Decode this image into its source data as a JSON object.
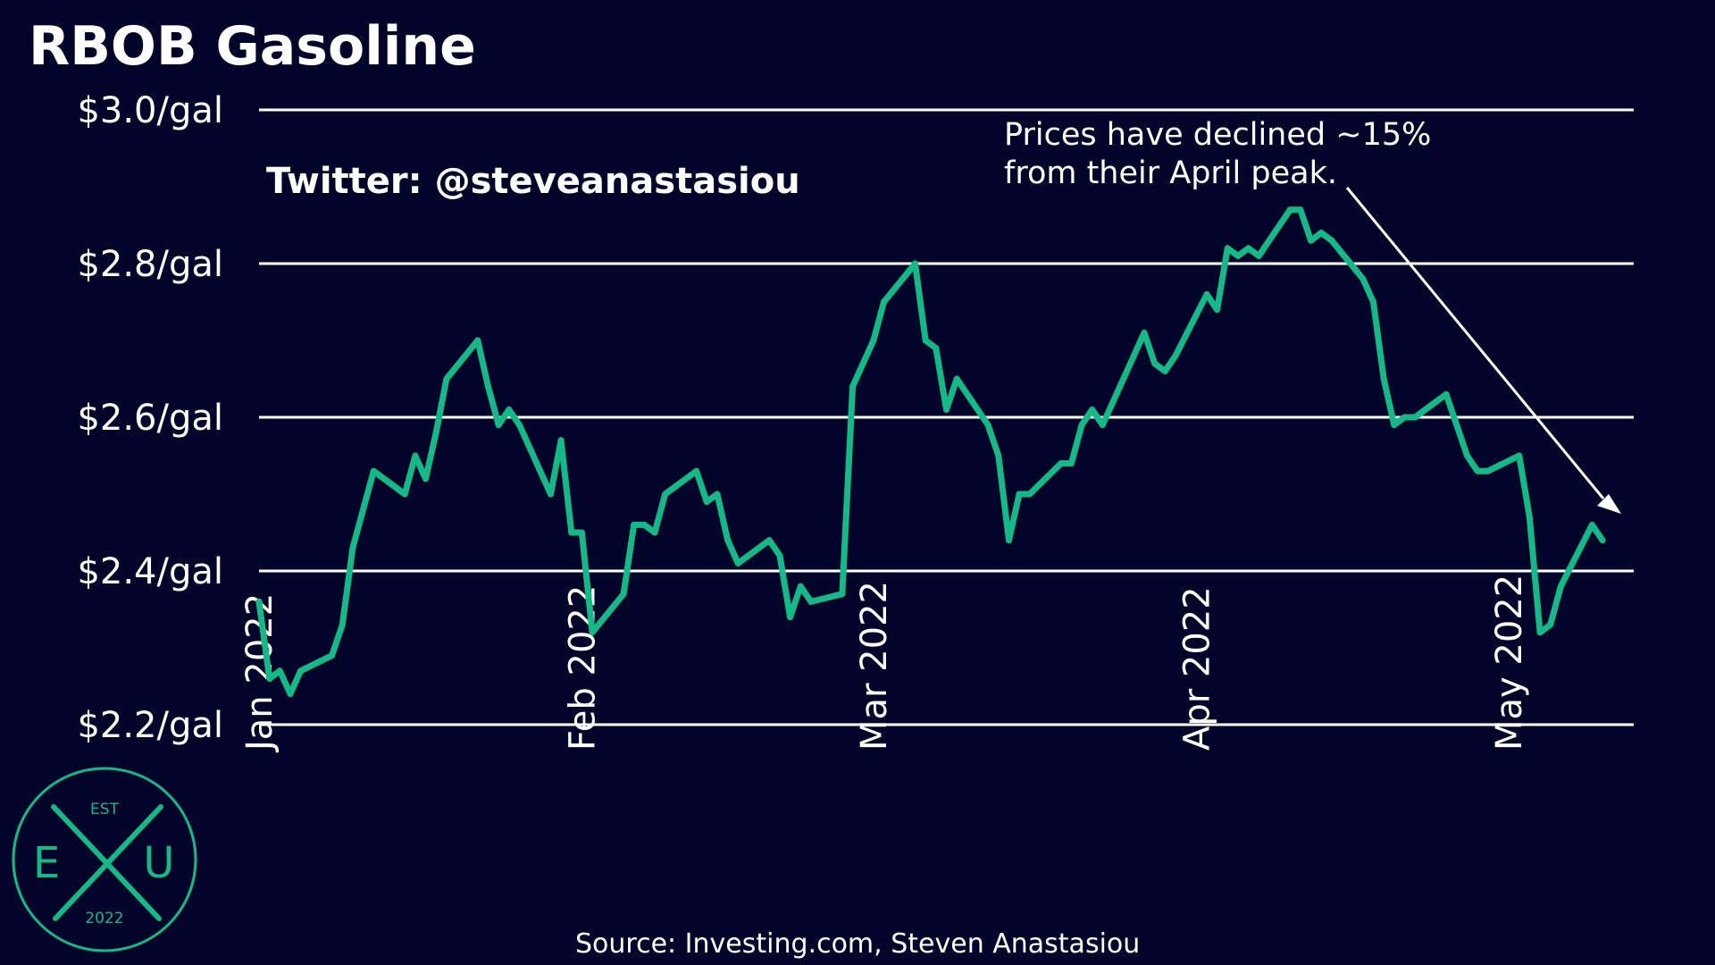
{
  "chart_data": {
    "type": "line",
    "title": "RBOB Gasoline",
    "credit": "Twitter: @steveanastasiou",
    "source": "Source: Investing.com, Steven Anastasiou",
    "annotation": {
      "line1": "Prices have declined ~15%",
      "line2": "from their April peak."
    },
    "y_ticks": [
      {
        "value": 3.0,
        "label": "$3.0/gal"
      },
      {
        "value": 2.8,
        "label": "$2.8/gal"
      },
      {
        "value": 2.6,
        "label": "$2.6/gal"
      },
      {
        "value": 2.4,
        "label": "$2.4/gal"
      },
      {
        "value": 2.2,
        "label": "$2.2/gal"
      }
    ],
    "ylim": [
      2.2,
      3.0
    ],
    "xlim": [
      "2022-01-01",
      "2022-05-13"
    ],
    "x_ticks": [
      {
        "date": "2022-01-01",
        "label": "Jan 2022"
      },
      {
        "date": "2022-02-01",
        "label": "Feb 2022"
      },
      {
        "date": "2022-03-01",
        "label": "Mar 2022"
      },
      {
        "date": "2022-04-01",
        "label": "Apr 2022"
      },
      {
        "date": "2022-05-01",
        "label": "May 2022"
      }
    ],
    "grid": "horizontal",
    "colors": {
      "line": "#14b987",
      "background": "#03042a",
      "grid": "#ffffff",
      "annotation_arrow": "#ffffff"
    },
    "series": [
      {
        "name": "",
        "points": [
          [
            "2022-01-01",
            2.36
          ],
          [
            "2022-01-02",
            2.26
          ],
          [
            "2022-01-03",
            2.27
          ],
          [
            "2022-01-04",
            2.24
          ],
          [
            "2022-01-05",
            2.27
          ],
          [
            "2022-01-08",
            2.29
          ],
          [
            "2022-01-09",
            2.33
          ],
          [
            "2022-01-10",
            2.43
          ],
          [
            "2022-01-11",
            2.48
          ],
          [
            "2022-01-12",
            2.53
          ],
          [
            "2022-01-15",
            2.5
          ],
          [
            "2022-01-16",
            2.55
          ],
          [
            "2022-01-17",
            2.52
          ],
          [
            "2022-01-18",
            2.58
          ],
          [
            "2022-01-19",
            2.65
          ],
          [
            "2022-01-22",
            2.7
          ],
          [
            "2022-01-23",
            2.64
          ],
          [
            "2022-01-24",
            2.59
          ],
          [
            "2022-01-25",
            2.61
          ],
          [
            "2022-01-26",
            2.59
          ],
          [
            "2022-01-29",
            2.5
          ],
          [
            "2022-01-30",
            2.57
          ],
          [
            "2022-01-31",
            2.45
          ],
          [
            "2022-02-01",
            2.45
          ],
          [
            "2022-02-02",
            2.32
          ],
          [
            "2022-02-05",
            2.37
          ],
          [
            "2022-02-06",
            2.46
          ],
          [
            "2022-02-07",
            2.46
          ],
          [
            "2022-02-08",
            2.45
          ],
          [
            "2022-02-09",
            2.5
          ],
          [
            "2022-02-12",
            2.53
          ],
          [
            "2022-02-13",
            2.49
          ],
          [
            "2022-02-14",
            2.5
          ],
          [
            "2022-02-15",
            2.44
          ],
          [
            "2022-02-16",
            2.41
          ],
          [
            "2022-02-19",
            2.44
          ],
          [
            "2022-02-20",
            2.42
          ],
          [
            "2022-02-21",
            2.34
          ],
          [
            "2022-02-22",
            2.38
          ],
          [
            "2022-02-23",
            2.36
          ],
          [
            "2022-02-26",
            2.37
          ],
          [
            "2022-02-27",
            2.64
          ],
          [
            "2022-02-28",
            2.67
          ],
          [
            "2022-03-01",
            2.7
          ],
          [
            "2022-03-02",
            2.75
          ],
          [
            "2022-03-05",
            2.8
          ],
          [
            "2022-03-06",
            2.7
          ],
          [
            "2022-03-07",
            2.69
          ],
          [
            "2022-03-08",
            2.61
          ],
          [
            "2022-03-09",
            2.65
          ],
          [
            "2022-03-12",
            2.59
          ],
          [
            "2022-03-13",
            2.55
          ],
          [
            "2022-03-14",
            2.44
          ],
          [
            "2022-03-15",
            2.5
          ],
          [
            "2022-03-16",
            2.5
          ],
          [
            "2022-03-19",
            2.54
          ],
          [
            "2022-03-20",
            2.54
          ],
          [
            "2022-03-21",
            2.59
          ],
          [
            "2022-03-22",
            2.61
          ],
          [
            "2022-03-23",
            2.59
          ],
          [
            "2022-03-26",
            2.68
          ],
          [
            "2022-03-27",
            2.71
          ],
          [
            "2022-03-28",
            2.67
          ],
          [
            "2022-03-29",
            2.66
          ],
          [
            "2022-03-30",
            2.68
          ],
          [
            "2022-04-02",
            2.76
          ],
          [
            "2022-04-03",
            2.74
          ],
          [
            "2022-04-04",
            2.82
          ],
          [
            "2022-04-05",
            2.81
          ],
          [
            "2022-04-06",
            2.82
          ],
          [
            "2022-04-07",
            2.81
          ],
          [
            "2022-04-10",
            2.87
          ],
          [
            "2022-04-11",
            2.87
          ],
          [
            "2022-04-12",
            2.83
          ],
          [
            "2022-04-13",
            2.84
          ],
          [
            "2022-04-14",
            2.83
          ],
          [
            "2022-04-17",
            2.78
          ],
          [
            "2022-04-18",
            2.75
          ],
          [
            "2022-04-19",
            2.65
          ],
          [
            "2022-04-20",
            2.59
          ],
          [
            "2022-04-21",
            2.6
          ],
          [
            "2022-04-22",
            2.6
          ],
          [
            "2022-04-25",
            2.63
          ],
          [
            "2022-04-26",
            2.59
          ],
          [
            "2022-04-27",
            2.55
          ],
          [
            "2022-04-28",
            2.53
          ],
          [
            "2022-04-29",
            2.53
          ],
          [
            "2022-05-02",
            2.55
          ],
          [
            "2022-05-03",
            2.47
          ],
          [
            "2022-05-04",
            2.32
          ],
          [
            "2022-05-05",
            2.33
          ],
          [
            "2022-05-06",
            2.38
          ],
          [
            "2022-05-09",
            2.46
          ],
          [
            "2022-05-10",
            2.44
          ]
        ]
      }
    ]
  },
  "logo": {
    "est": "EST",
    "left": "E",
    "center": "X",
    "right": "U",
    "year": "2022"
  }
}
